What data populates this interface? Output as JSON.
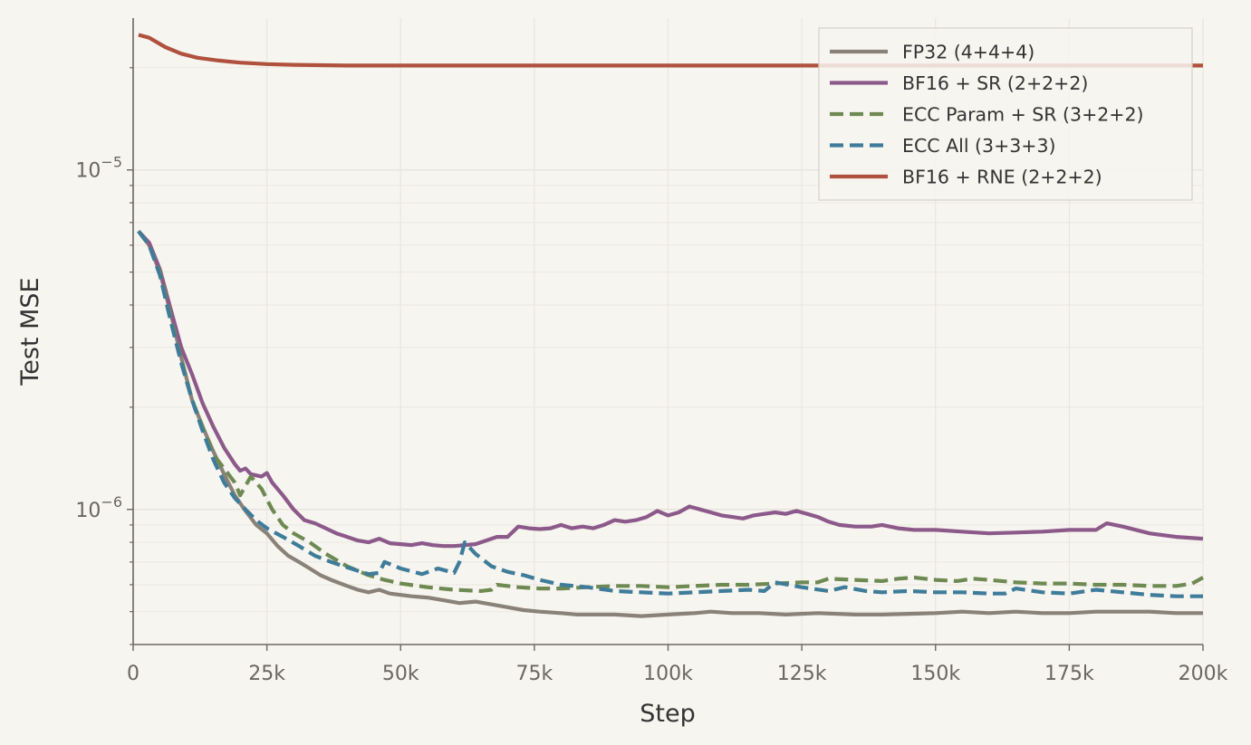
{
  "chart_data": {
    "type": "line",
    "title": "",
    "xlabel": "Step",
    "ylabel": "Test MSE",
    "yscale": "log",
    "xlim": [
      0,
      200000
    ],
    "ylim": [
      4e-07,
      2.8e-05
    ],
    "xticks": [
      {
        "value": 0,
        "label": "0"
      },
      {
        "value": 25000,
        "label": "25k"
      },
      {
        "value": 50000,
        "label": "50k"
      },
      {
        "value": 75000,
        "label": "75k"
      },
      {
        "value": 100000,
        "label": "100k"
      },
      {
        "value": 125000,
        "label": "125k"
      },
      {
        "value": 150000,
        "label": "150k"
      },
      {
        "value": 175000,
        "label": "175k"
      },
      {
        "value": 200000,
        "label": "200k"
      }
    ],
    "yticks": [
      {
        "value": 1e-06,
        "base": "10",
        "exp": "−6"
      },
      {
        "value": 1e-05,
        "base": "10",
        "exp": "−5"
      }
    ],
    "grid": true,
    "legend_position": "top-right",
    "series": [
      {
        "name": "FP32 (4+4+4)",
        "color": "#8a8279",
        "dash": "solid",
        "points": [
          [
            1000,
            6.6e-06
          ],
          [
            3000,
            6e-06
          ],
          [
            5000,
            5e-06
          ],
          [
            7000,
            3.8e-06
          ],
          [
            9000,
            2.8e-06
          ],
          [
            11000,
            2.1e-06
          ],
          [
            13000,
            1.75e-06
          ],
          [
            15000,
            1.48e-06
          ],
          [
            17000,
            1.27e-06
          ],
          [
            19000,
            1.1e-06
          ],
          [
            21000,
            9.9e-07
          ],
          [
            23000,
            9e-07
          ],
          [
            25000,
            8.5e-07
          ],
          [
            27000,
            7.8e-07
          ],
          [
            29000,
            7.3e-07
          ],
          [
            31000,
            7e-07
          ],
          [
            33000,
            6.7e-07
          ],
          [
            35000,
            6.4e-07
          ],
          [
            37000,
            6.2e-07
          ],
          [
            40000,
            5.95e-07
          ],
          [
            42000,
            5.8e-07
          ],
          [
            44000,
            5.7e-07
          ],
          [
            46000,
            5.8e-07
          ],
          [
            48000,
            5.65e-07
          ],
          [
            50000,
            5.6e-07
          ],
          [
            52000,
            5.55e-07
          ],
          [
            55000,
            5.5e-07
          ],
          [
            58000,
            5.4e-07
          ],
          [
            61000,
            5.3e-07
          ],
          [
            64000,
            5.35e-07
          ],
          [
            67000,
            5.25e-07
          ],
          [
            70000,
            5.15e-07
          ],
          [
            73000,
            5.05e-07
          ],
          [
            76000,
            5e-07
          ],
          [
            80000,
            4.95e-07
          ],
          [
            83000,
            4.9e-07
          ],
          [
            86000,
            4.9e-07
          ],
          [
            90000,
            4.9e-07
          ],
          [
            95000,
            4.85e-07
          ],
          [
            100000,
            4.9e-07
          ],
          [
            105000,
            4.95e-07
          ],
          [
            108000,
            5e-07
          ],
          [
            112000,
            4.95e-07
          ],
          [
            117000,
            4.95e-07
          ],
          [
            122000,
            4.9e-07
          ],
          [
            128000,
            4.95e-07
          ],
          [
            135000,
            4.9e-07
          ],
          [
            140000,
            4.9e-07
          ],
          [
            150000,
            4.95e-07
          ],
          [
            155000,
            5e-07
          ],
          [
            160000,
            4.95e-07
          ],
          [
            165000,
            5e-07
          ],
          [
            170000,
            4.95e-07
          ],
          [
            175000,
            4.95e-07
          ],
          [
            180000,
            5e-07
          ],
          [
            185000,
            5e-07
          ],
          [
            190000,
            5e-07
          ],
          [
            195000,
            4.95e-07
          ],
          [
            200000,
            4.95e-07
          ]
        ]
      },
      {
        "name": "BF16 + SR (2+2+2)",
        "color": "#8c5a8a",
        "dash": "solid",
        "points": [
          [
            1000,
            6.6e-06
          ],
          [
            3000,
            6.1e-06
          ],
          [
            5000,
            5.1e-06
          ],
          [
            7000,
            3.9e-06
          ],
          [
            9000,
            3e-06
          ],
          [
            11000,
            2.5e-06
          ],
          [
            13000,
            2.05e-06
          ],
          [
            15000,
            1.75e-06
          ],
          [
            17000,
            1.52e-06
          ],
          [
            19000,
            1.36e-06
          ],
          [
            20000,
            1.3e-06
          ],
          [
            21000,
            1.32e-06
          ],
          [
            22000,
            1.27e-06
          ],
          [
            24000,
            1.25e-06
          ],
          [
            25000,
            1.28e-06
          ],
          [
            26000,
            1.2e-06
          ],
          [
            28000,
            1.1e-06
          ],
          [
            30000,
            1e-06
          ],
          [
            32000,
            9.3e-07
          ],
          [
            34000,
            9.1e-07
          ],
          [
            36000,
            8.8e-07
          ],
          [
            38000,
            8.5e-07
          ],
          [
            40000,
            8.3e-07
          ],
          [
            42000,
            8.1e-07
          ],
          [
            44000,
            8e-07
          ],
          [
            46000,
            8.2e-07
          ],
          [
            48000,
            7.95e-07
          ],
          [
            50000,
            7.9e-07
          ],
          [
            52000,
            7.85e-07
          ],
          [
            54000,
            7.95e-07
          ],
          [
            56000,
            7.85e-07
          ],
          [
            58000,
            7.8e-07
          ],
          [
            60000,
            7.8e-07
          ],
          [
            62000,
            7.85e-07
          ],
          [
            64000,
            7.9e-07
          ],
          [
            66000,
            8.1e-07
          ],
          [
            68000,
            8.3e-07
          ],
          [
            70000,
            8.3e-07
          ],
          [
            72000,
            8.9e-07
          ],
          [
            74000,
            8.8e-07
          ],
          [
            76000,
            8.75e-07
          ],
          [
            78000,
            8.8e-07
          ],
          [
            80000,
            9e-07
          ],
          [
            82000,
            8.8e-07
          ],
          [
            84000,
            8.9e-07
          ],
          [
            86000,
            8.8e-07
          ],
          [
            88000,
            9e-07
          ],
          [
            90000,
            9.3e-07
          ],
          [
            92000,
            9.2e-07
          ],
          [
            94000,
            9.3e-07
          ],
          [
            96000,
            9.5e-07
          ],
          [
            98000,
            9.9e-07
          ],
          [
            100000,
            9.6e-07
          ],
          [
            102000,
            9.8e-07
          ],
          [
            104000,
            1.02e-06
          ],
          [
            106000,
            1e-06
          ],
          [
            108000,
            9.8e-07
          ],
          [
            110000,
            9.6e-07
          ],
          [
            112000,
            9.5e-07
          ],
          [
            114000,
            9.4e-07
          ],
          [
            116000,
            9.6e-07
          ],
          [
            118000,
            9.7e-07
          ],
          [
            120000,
            9.8e-07
          ],
          [
            122000,
            9.7e-07
          ],
          [
            124000,
            9.9e-07
          ],
          [
            126000,
            9.7e-07
          ],
          [
            128000,
            9.5e-07
          ],
          [
            130000,
            9.2e-07
          ],
          [
            132000,
            9e-07
          ],
          [
            135000,
            8.9e-07
          ],
          [
            138000,
            8.9e-07
          ],
          [
            140000,
            9e-07
          ],
          [
            143000,
            8.8e-07
          ],
          [
            146000,
            8.7e-07
          ],
          [
            150000,
            8.7e-07
          ],
          [
            155000,
            8.6e-07
          ],
          [
            160000,
            8.5e-07
          ],
          [
            165000,
            8.55e-07
          ],
          [
            170000,
            8.6e-07
          ],
          [
            175000,
            8.7e-07
          ],
          [
            180000,
            8.7e-07
          ],
          [
            182000,
            9.1e-07
          ],
          [
            185000,
            8.9e-07
          ],
          [
            190000,
            8.5e-07
          ],
          [
            195000,
            8.3e-07
          ],
          [
            200000,
            8.2e-07
          ]
        ]
      },
      {
        "name": "ECC Param + SR (3+2+2)",
        "color": "#6e8a52",
        "dash": "dashed",
        "points": [
          [
            1000,
            6.6e-06
          ],
          [
            3000,
            6e-06
          ],
          [
            5000,
            5e-06
          ],
          [
            7000,
            3.7e-06
          ],
          [
            9000,
            2.75e-06
          ],
          [
            11000,
            2.1e-06
          ],
          [
            13000,
            1.75e-06
          ],
          [
            15000,
            1.45e-06
          ],
          [
            17000,
            1.32e-06
          ],
          [
            19000,
            1.2e-06
          ],
          [
            20000,
            1.1e-06
          ],
          [
            22000,
            1.25e-06
          ],
          [
            24000,
            1.15e-06
          ],
          [
            26000,
            1e-06
          ],
          [
            28000,
            9e-07
          ],
          [
            30000,
            8.5e-07
          ],
          [
            33000,
            8e-07
          ],
          [
            36000,
            7.4e-07
          ],
          [
            40000,
            6.8e-07
          ],
          [
            44000,
            6.4e-07
          ],
          [
            47000,
            6.2e-07
          ],
          [
            50000,
            6.05e-07
          ],
          [
            55000,
            5.9e-07
          ],
          [
            60000,
            5.8e-07
          ],
          [
            65000,
            5.75e-07
          ],
          [
            67000,
            5.8e-07
          ],
          [
            68000,
            6e-07
          ],
          [
            72000,
            5.9e-07
          ],
          [
            76000,
            5.85e-07
          ],
          [
            80000,
            5.85e-07
          ],
          [
            85000,
            5.9e-07
          ],
          [
            90000,
            5.95e-07
          ],
          [
            95000,
            5.95e-07
          ],
          [
            100000,
            5.9e-07
          ],
          [
            105000,
            5.95e-07
          ],
          [
            110000,
            6e-07
          ],
          [
            115000,
            6e-07
          ],
          [
            120000,
            6.05e-07
          ],
          [
            125000,
            6.1e-07
          ],
          [
            128000,
            6.1e-07
          ],
          [
            130000,
            6.25e-07
          ],
          [
            135000,
            6.2e-07
          ],
          [
            140000,
            6.15e-07
          ],
          [
            143000,
            6.25e-07
          ],
          [
            146000,
            6.3e-07
          ],
          [
            150000,
            6.2e-07
          ],
          [
            154000,
            6.15e-07
          ],
          [
            157000,
            6.25e-07
          ],
          [
            160000,
            6.2e-07
          ],
          [
            165000,
            6.1e-07
          ],
          [
            170000,
            6.05e-07
          ],
          [
            175000,
            6.05e-07
          ],
          [
            180000,
            6e-07
          ],
          [
            185000,
            6e-07
          ],
          [
            190000,
            5.95e-07
          ],
          [
            195000,
            5.95e-07
          ],
          [
            198000,
            6.05e-07
          ],
          [
            200000,
            6.3e-07
          ]
        ]
      },
      {
        "name": "ECC All (3+3+3)",
        "color": "#3f7c9a",
        "dash": "dashed",
        "points": [
          [
            1000,
            6.6e-06
          ],
          [
            3000,
            6e-06
          ],
          [
            5000,
            4.9e-06
          ],
          [
            7000,
            3.6e-06
          ],
          [
            9000,
            2.7e-06
          ],
          [
            11000,
            2.1e-06
          ],
          [
            13000,
            1.7e-06
          ],
          [
            15000,
            1.4e-06
          ],
          [
            17000,
            1.2e-06
          ],
          [
            19000,
            1.08e-06
          ],
          [
            21000,
            1e-06
          ],
          [
            23000,
            9.3e-07
          ],
          [
            25000,
            8.8e-07
          ],
          [
            28000,
            8.3e-07
          ],
          [
            31000,
            7.8e-07
          ],
          [
            34000,
            7.3e-07
          ],
          [
            37000,
            7e-07
          ],
          [
            40000,
            6.75e-07
          ],
          [
            44000,
            6.45e-07
          ],
          [
            46000,
            6.5e-07
          ],
          [
            47000,
            7e-07
          ],
          [
            50000,
            6.7e-07
          ],
          [
            54000,
            6.45e-07
          ],
          [
            57000,
            6.7e-07
          ],
          [
            60000,
            6.5e-07
          ],
          [
            61000,
            7e-07
          ],
          [
            62000,
            8e-07
          ],
          [
            64000,
            7.4e-07
          ],
          [
            67000,
            6.8e-07
          ],
          [
            70000,
            6.55e-07
          ],
          [
            73000,
            6.4e-07
          ],
          [
            76000,
            6.2e-07
          ],
          [
            80000,
            6e-07
          ],
          [
            85000,
            5.9e-07
          ],
          [
            90000,
            5.75e-07
          ],
          [
            95000,
            5.7e-07
          ],
          [
            100000,
            5.65e-07
          ],
          [
            105000,
            5.7e-07
          ],
          [
            110000,
            5.75e-07
          ],
          [
            115000,
            5.8e-07
          ],
          [
            118000,
            5.75e-07
          ],
          [
            120000,
            6.1e-07
          ],
          [
            125000,
            5.9e-07
          ],
          [
            130000,
            5.75e-07
          ],
          [
            133000,
            5.9e-07
          ],
          [
            137000,
            5.75e-07
          ],
          [
            140000,
            5.7e-07
          ],
          [
            145000,
            5.75e-07
          ],
          [
            150000,
            5.7e-07
          ],
          [
            155000,
            5.7e-07
          ],
          [
            160000,
            5.65e-07
          ],
          [
            163000,
            5.65e-07
          ],
          [
            165000,
            5.85e-07
          ],
          [
            170000,
            5.7e-07
          ],
          [
            175000,
            5.65e-07
          ],
          [
            180000,
            5.8e-07
          ],
          [
            185000,
            5.7e-07
          ],
          [
            190000,
            5.6e-07
          ],
          [
            195000,
            5.55e-07
          ],
          [
            200000,
            5.55e-07
          ]
        ]
      },
      {
        "name": "BF16 + RNE (2+2+2)",
        "color": "#b0513e",
        "dash": "solid",
        "points": [
          [
            1000,
            2.5e-05
          ],
          [
            3000,
            2.45e-05
          ],
          [
            6000,
            2.3e-05
          ],
          [
            9000,
            2.2e-05
          ],
          [
            12000,
            2.14e-05
          ],
          [
            16000,
            2.1e-05
          ],
          [
            20000,
            2.07e-05
          ],
          [
            25000,
            2.05e-05
          ],
          [
            30000,
            2.04e-05
          ],
          [
            40000,
            2.03e-05
          ],
          [
            60000,
            2.03e-05
          ],
          [
            100000,
            2.03e-05
          ],
          [
            150000,
            2.03e-05
          ],
          [
            200000,
            2.03e-05
          ]
        ]
      }
    ]
  }
}
